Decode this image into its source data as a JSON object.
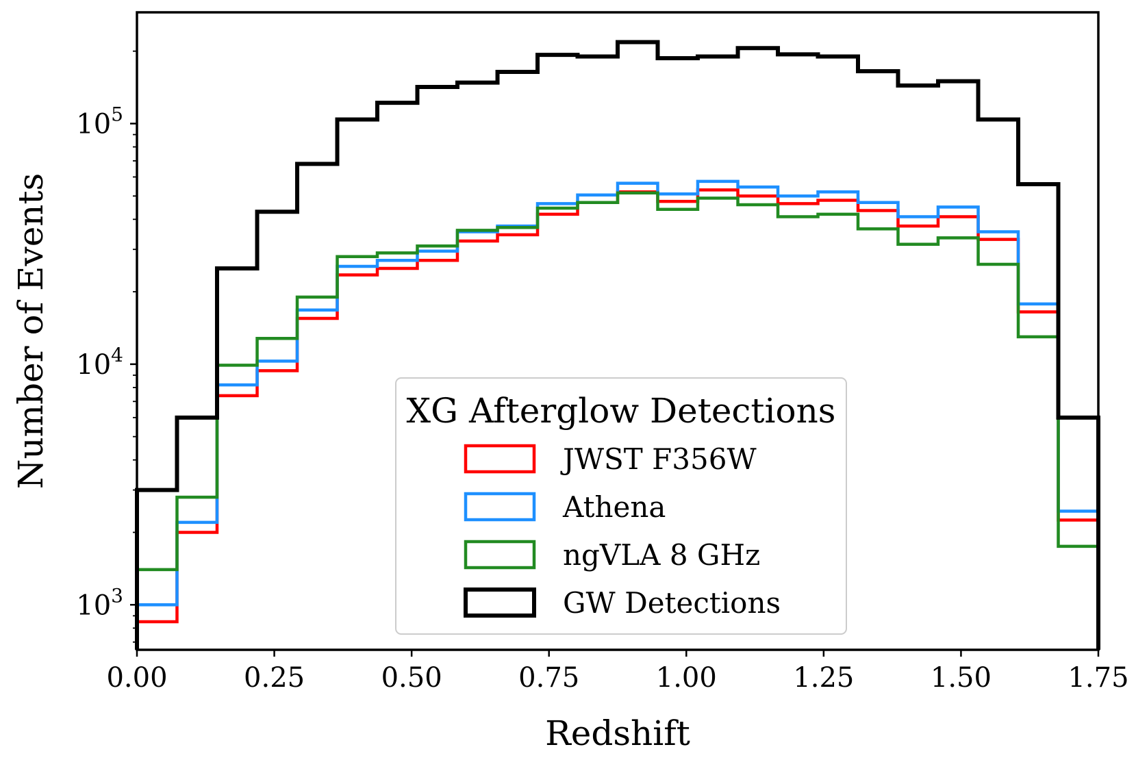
{
  "chart_data": {
    "type": "histogram",
    "xlabel": "Redshift",
    "ylabel": "Number of Events",
    "yscale": "log",
    "xlim": [
      0.0,
      1.75
    ],
    "ylim": [
      650,
      290000
    ],
    "x_ticks": [
      "0.00",
      "0.25",
      "0.50",
      "0.75",
      "1.00",
      "1.25",
      "1.50",
      "1.75"
    ],
    "x_tick_values": [
      0.0,
      0.25,
      0.5,
      0.75,
      1.0,
      1.25,
      1.5,
      1.75
    ],
    "y_ticks": [
      {
        "value": 1000,
        "base": "10",
        "exp": "3"
      },
      {
        "value": 10000,
        "base": "10",
        "exp": "4"
      },
      {
        "value": 100000,
        "base": "10",
        "exp": "5"
      }
    ],
    "bin_edges": [
      0.0,
      0.0729,
      0.1458,
      0.2188,
      0.2917,
      0.3646,
      0.4375,
      0.5104,
      0.5833,
      0.6563,
      0.7292,
      0.8021,
      0.875,
      0.9479,
      1.0208,
      1.0938,
      1.1667,
      1.2396,
      1.3125,
      1.3854,
      1.4583,
      1.5313,
      1.6042,
      1.6771,
      1.75
    ],
    "legend": {
      "title": "XG Afterglow Detections",
      "position": "lower center"
    },
    "series": [
      {
        "name": "JWST F356W",
        "color": "#ff0000",
        "values": [
          850,
          2000,
          7400,
          9400,
          15500,
          23500,
          25000,
          27000,
          32500,
          34500,
          42000,
          47000,
          52000,
          47500,
          53000,
          50000,
          46500,
          48000,
          43500,
          37500,
          41000,
          33000,
          16500,
          2250
        ]
      },
      {
        "name": "Athena",
        "color": "#1e90ff",
        "values": [
          1000,
          2200,
          8200,
          10300,
          16800,
          25500,
          27000,
          29500,
          35500,
          37500,
          46500,
          50500,
          56500,
          51000,
          57500,
          54500,
          50000,
          52000,
          47000,
          41000,
          45000,
          35500,
          17800,
          2450
        ]
      },
      {
        "name": "ngVLA 8 GHz",
        "color": "#228b22",
        "values": [
          1400,
          2800,
          9900,
          12800,
          19000,
          28000,
          29000,
          31000,
          36000,
          37000,
          44500,
          47000,
          51500,
          44000,
          49000,
          46000,
          41000,
          42000,
          36500,
          31500,
          33500,
          26000,
          13000,
          1750
        ]
      },
      {
        "name": "GW Detections",
        "color": "#000000",
        "values": [
          3000,
          6000,
          25000,
          43000,
          68000,
          104000,
          122000,
          142000,
          148000,
          164000,
          193000,
          190000,
          218000,
          187000,
          190000,
          206000,
          194000,
          190000,
          165000,
          144000,
          150000,
          104000,
          56000,
          6000
        ]
      }
    ]
  }
}
